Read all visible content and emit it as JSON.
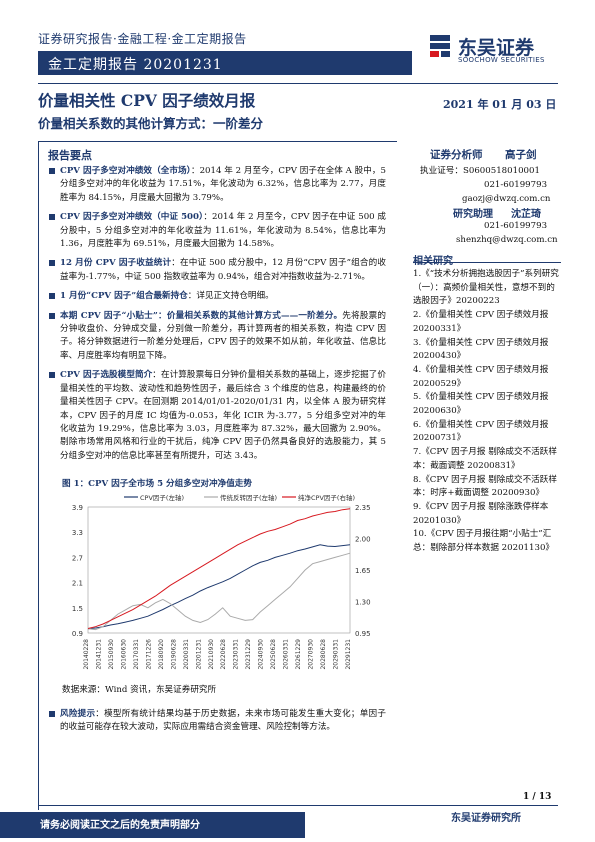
{
  "header": {
    "breadcrumb": "证券研究报告·金融工程·金工定期报告",
    "banner": "金工定期报告 20201231",
    "logo_cn": "东吴证券",
    "logo_en": "SOOCHOW SECURITIES"
  },
  "title": "价量相关性 CPV 因子绩效月报",
  "subtitle": "价量相关系数的其他计算方式：一阶差分",
  "date": "2021 年 01 月 03 日",
  "summary_title": "报告要点",
  "bullets": [
    {
      "head": "CPV 因子多空对冲绩效（全市场）",
      "body": "：2014 年 2 月至今，CPV 因子在全体 A 股中，5 分组多空对冲的年化收益为 17.51%，年化波动为 6.32%，信息比率为 2.77，月度胜率为 84.15%，月度最大回撤为 3.79%。"
    },
    {
      "head": "CPV 因子多空对冲绩效（中证 500）",
      "body": "：2014 年 2 月至今，CPV 因子在中证 500 成分股中，5 分组多空对冲的年化收益为 11.61%，年化波动为 8.54%，信息比率为 1.36，月度胜率为 69.51%，月度最大回撤为 14.58%。"
    },
    {
      "head": "12 月份 CPV 因子收益统计",
      "body": "：在中证 500 成分股中，12 月份“CPV 因子”组合的收益率为-1.77%，中证 500 指数收益率为 0.94%，组合对冲指数收益为-2.71%。"
    },
    {
      "head": "1 月份“CPV 因子”组合最新持仓",
      "body": "：详见正文持仓明细。"
    },
    {
      "head": "本期 CPV 因子“小贴士”：价量相关系数的其他计算方式——一阶差分。",
      "body": "先将股票的分钟收盘价、分钟成交量，分别做一阶差分，再计算两者的相关系数，构造 CPV 因子。将分钟数据进行一阶差分处理后，CPV 因子的效果不如从前，年化收益、信息比率、月度胜率均有明显下降。"
    },
    {
      "head": "CPV 因子选股模型简介",
      "body": "：在计算股票每日分钟价量相关系数的基础上，逐步挖掘了价量相关性的平均数、波动性和趋势性因子，最后综合 3 个维度的信息，构建最终的价量相关性因子 CPV。在回测期 2014/01/01-2020/01/31 内，以全体 A 股为研究样本，CPV 因子的月度 IC 均值为-0.053，年化 ICIR 为-3.77，5 分组多空对冲的年化收益为 19.29%，信息比率为 3.03，月度胜率为 87.32%，最大回撤为 2.90%。剔除市场常用风格和行业的干扰后，纯净 CPV 因子仍然具备良好的选股能力，其 5 分组多空对冲的信息比率甚至有所提升，可达 3.43。"
    }
  ],
  "figure_title": "图 1：CPV 因子全市场 5 分组多空对冲净值走势",
  "chart_data": {
    "type": "line",
    "legend": [
      "CPV因子(左轴)",
      "传统反转因子(左轴)",
      "纯净CPV因子(右轴)"
    ],
    "x_ticks": [
      "20140228",
      "20141231",
      "20150930",
      "20160630",
      "20170331",
      "20171226",
      "20180920",
      "20190628",
      "20200331",
      "20201231",
      "20210930",
      "20220628",
      "20230331",
      "20231229",
      "20240930",
      "20250628",
      "20260331",
      "20261229",
      "20270930",
      "20280628",
      "20290331",
      "20291231"
    ],
    "y_left_ticks": [
      "0.9",
      "1.5",
      "2.1",
      "2.7",
      "3.3",
      "3.9"
    ],
    "y_right_ticks": [
      "0.95",
      "1.30",
      "1.65",
      "2.00",
      "2.35"
    ],
    "series": [
      {
        "name": "CPV因子(左轴)",
        "color": "#1f3a6e",
        "axis": "left",
        "values": [
          1.0,
          1.02,
          1.05,
          1.09,
          1.12,
          1.16,
          1.2,
          1.25,
          1.3,
          1.38,
          1.46,
          1.55,
          1.63,
          1.72,
          1.8,
          1.9,
          1.98,
          2.05,
          2.12,
          2.2,
          2.3,
          2.4,
          2.5,
          2.58,
          2.63,
          2.7,
          2.75,
          2.8,
          2.86,
          2.9,
          2.95,
          3.0,
          2.97,
          2.96,
          2.98,
          3.0
        ]
      },
      {
        "name": "传统反转因子(左轴)",
        "color": "#aaaaaa",
        "axis": "left",
        "values": [
          1.0,
          0.98,
          1.05,
          1.2,
          1.35,
          1.45,
          1.55,
          1.58,
          1.5,
          1.62,
          1.7,
          1.6,
          1.45,
          1.3,
          1.2,
          1.15,
          1.22,
          1.35,
          1.5,
          1.3,
          1.25,
          1.2,
          1.22,
          1.4,
          1.55,
          1.7,
          1.85,
          2.0,
          2.2,
          2.4,
          2.55,
          2.6,
          2.65,
          2.7,
          2.75,
          2.8
        ]
      },
      {
        "name": "纯净CPV因子(右轴)",
        "color": "#d71920",
        "axis": "right",
        "values": [
          1.0,
          1.02,
          1.05,
          1.09,
          1.13,
          1.17,
          1.21,
          1.26,
          1.31,
          1.36,
          1.42,
          1.48,
          1.53,
          1.58,
          1.63,
          1.68,
          1.73,
          1.78,
          1.83,
          1.88,
          1.93,
          1.97,
          2.01,
          2.05,
          2.08,
          2.1,
          2.13,
          2.16,
          2.2,
          2.22,
          2.25,
          2.27,
          2.29,
          2.3,
          2.32,
          2.33
        ]
      }
    ]
  },
  "source": "数据来源：Wind 资讯，东吴证券研究所",
  "risk": {
    "head": "风险提示",
    "body": "：模型所有统计结果均基于历史数据，未来市场可能发生重大变化；单因子的收益可能存在较大波动，实际应用需结合资金管理、风险控制等方法。"
  },
  "analysts": {
    "label": "证券分析师",
    "name": "高子剑",
    "reg": "执业证号：S0600518010001",
    "phone": "021-60199793",
    "email": "gaozj@dwzq.com.cn",
    "assistant_label": "研究助理",
    "assistant_name": "沈芷琦",
    "assistant_phone": "021-60199793",
    "assistant_email": "shenzhq@dwzq.com.cn"
  },
  "related_title": "相关研究",
  "related": [
    "1.《“技术分析拥抱选股因子”系列研究（一）：高频价量相关性，意想不到的选股因子》20200223",
    "2.《价量相关性 CPV 因子绩效月报 20200331》",
    "3.《价量相关性 CPV 因子绩效月报 20200430》",
    "4.《价量相关性 CPV 因子绩效月报 20200529》",
    "5.《价量相关性 CPV 因子绩效月报 20200630》",
    "6.《价量相关性 CPV 因子绩效月报 20200731》",
    "7.《CPV 因子月报 剔除成交不活跃样本：截面调整 20200831》",
    "8.《CPV 因子月报 剔除成交不活跃样本：时序+截面调整 20200930》",
    "9.《CPV 因子月报 剔除涨跌停样本 20201030》",
    "10.《CPV 因子月报往期“小贴士”汇总：剔除部分样本数据 20201130》"
  ],
  "page": "1 / 13",
  "footer_left": "请务必阅读正文之后的免责声明部分",
  "footer_right": "东吴证券研究所"
}
